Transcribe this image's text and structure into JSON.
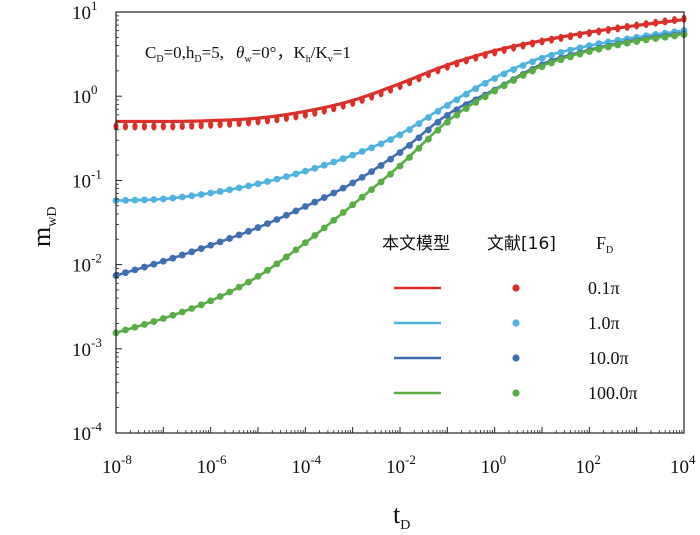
{
  "chart_data": {
    "type": "line",
    "title": "",
    "annotation": {
      "cd": "C",
      "cd_sub": "D",
      "cd_val": "=0,",
      "hd": "h",
      "hd_sub": "D",
      "hd_val": "=5,",
      "theta": "θ",
      "theta_sub": "w",
      "theta_val": "=0°",
      "k": "，K",
      "kh_sub": "h",
      "kslash": "/K",
      "kv_sub": "v",
      "k_val": "=1"
    },
    "xlabel": "t",
    "xlabel_sub": "D",
    "ylabel": "m",
    "ylabel_sub": "wD",
    "x_scale": "log",
    "y_scale": "log",
    "xlim": [
      1e-08,
      10000.0
    ],
    "ylim": [
      0.0001,
      10
    ],
    "x_ticks": [
      {
        "base": "10",
        "exp": "-8",
        "value": -8
      },
      {
        "base": "10",
        "exp": "-6",
        "value": -6
      },
      {
        "base": "10",
        "exp": "-4",
        "value": -4
      },
      {
        "base": "10",
        "exp": "-2",
        "value": -2
      },
      {
        "base": "10",
        "exp": "0",
        "value": 0
      },
      {
        "base": "10",
        "exp": "2",
        "value": 2
      },
      {
        "base": "10",
        "exp": "4",
        "value": 4
      }
    ],
    "y_ticks": [
      {
        "base": "10",
        "exp": "-4",
        "value": -4
      },
      {
        "base": "10",
        "exp": "-3",
        "value": -3
      },
      {
        "base": "10",
        "exp": "-2",
        "value": -2
      },
      {
        "base": "10",
        "exp": "-1",
        "value": -1
      },
      {
        "base": "10",
        "exp": "0",
        "value": 0
      },
      {
        "base": "10",
        "exp": "1",
        "value": 1
      }
    ],
    "legend": {
      "model_label": "本文模型",
      "ref_label": "文献[16]",
      "fd_label": "F",
      "fd_sub": "D",
      "placement": "center-right"
    },
    "series": [
      {
        "name": "0.1π",
        "color": "#d9312a",
        "log_x": [
          -8,
          -7,
          -6,
          -5,
          -4,
          -3,
          -2,
          -1,
          0,
          1,
          2,
          3,
          4
        ],
        "log_y_model": [
          -0.3,
          -0.3,
          -0.29,
          -0.26,
          -0.18,
          -0.05,
          0.15,
          0.37,
          0.54,
          0.66,
          0.76,
          0.84,
          0.91
        ],
        "log_y_reference": [
          -0.36,
          -0.36,
          -0.34,
          -0.3,
          -0.22,
          -0.08,
          0.12,
          0.35,
          0.52,
          0.65,
          0.75,
          0.84,
          0.92
        ]
      },
      {
        "name": "1.0π",
        "color": "#4fb3e0",
        "log_x": [
          -8,
          -7,
          -6,
          -5,
          -4,
          -3,
          -2,
          -1,
          0,
          1,
          2,
          3,
          4
        ],
        "log_y_model": [
          -1.24,
          -1.22,
          -1.15,
          -1.04,
          -0.89,
          -0.7,
          -0.45,
          -0.1,
          0.22,
          0.46,
          0.6,
          0.7,
          0.78
        ],
        "log_y_reference": [
          -1.24,
          -1.22,
          -1.15,
          -1.04,
          -0.89,
          -0.7,
          -0.46,
          -0.11,
          0.21,
          0.45,
          0.6,
          0.7,
          0.78
        ]
      },
      {
        "name": "10.0π",
        "color": "#3f6fb0",
        "log_x": [
          -8,
          -7,
          -6,
          -5,
          -4,
          -3,
          -2,
          -1,
          0,
          1,
          2,
          3,
          4
        ],
        "log_y_model": [
          -2.13,
          -1.96,
          -1.77,
          -1.56,
          -1.31,
          -1.03,
          -0.66,
          -0.22,
          0.08,
          0.38,
          0.55,
          0.67,
          0.75
        ],
        "log_y_reference": [
          -2.13,
          -1.96,
          -1.77,
          -1.56,
          -1.31,
          -1.03,
          -0.67,
          -0.23,
          0.07,
          0.37,
          0.54,
          0.66,
          0.74
        ]
      },
      {
        "name": "100.0π",
        "color": "#58ad45",
        "log_x": [
          -8,
          -7,
          -6,
          -5,
          -4,
          -3,
          -2,
          -1,
          0,
          1,
          2,
          3,
          4
        ],
        "log_y_model": [
          -2.81,
          -2.64,
          -2.43,
          -2.14,
          -1.74,
          -1.29,
          -0.82,
          -0.3,
          0.07,
          0.36,
          0.54,
          0.66,
          0.74
        ],
        "log_y_reference": [
          -2.81,
          -2.64,
          -2.43,
          -2.14,
          -1.74,
          -1.29,
          -0.83,
          -0.31,
          0.06,
          0.35,
          0.53,
          0.65,
          0.73
        ]
      }
    ]
  }
}
